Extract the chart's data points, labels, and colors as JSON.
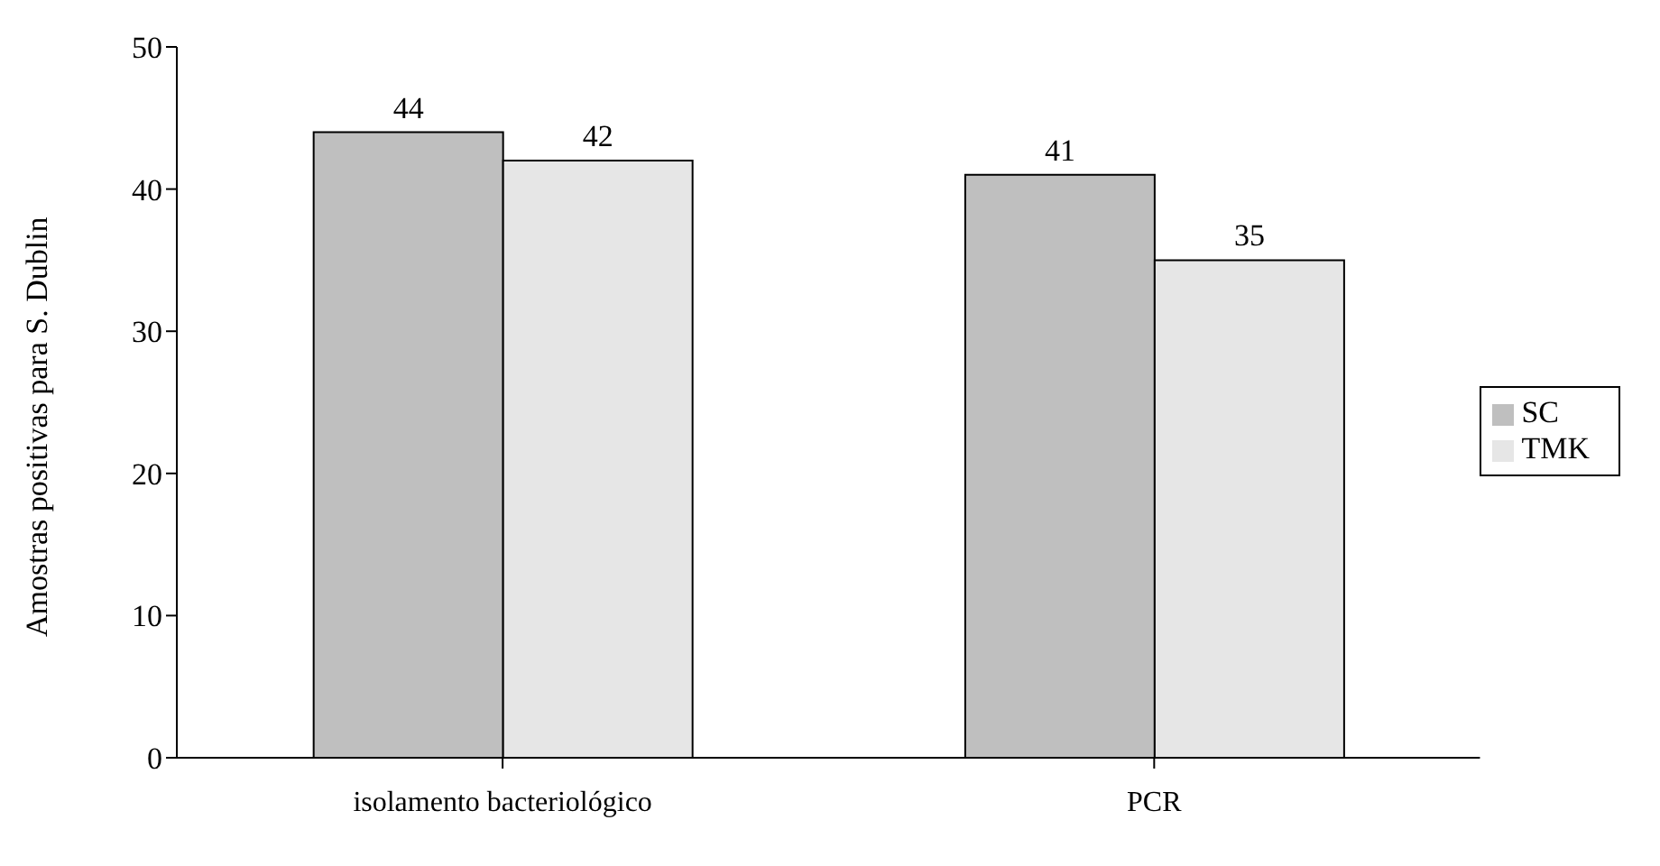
{
  "chart_data": {
    "type": "bar",
    "ylabel": "Amostras positivas para S. Dublin",
    "categories": [
      "isolamento bacteriológico",
      "PCR"
    ],
    "series": [
      {
        "name": "SC",
        "color": "#bfbfbf",
        "values": [
          44,
          41
        ]
      },
      {
        "name": "TMK",
        "color": "#e6e6e6",
        "values": [
          42,
          35
        ]
      }
    ],
    "ylim": [
      0,
      50
    ],
    "yticks": [
      0,
      10,
      20,
      30,
      40,
      50
    ],
    "grid": false,
    "legend": "right",
    "data_labels": true
  }
}
